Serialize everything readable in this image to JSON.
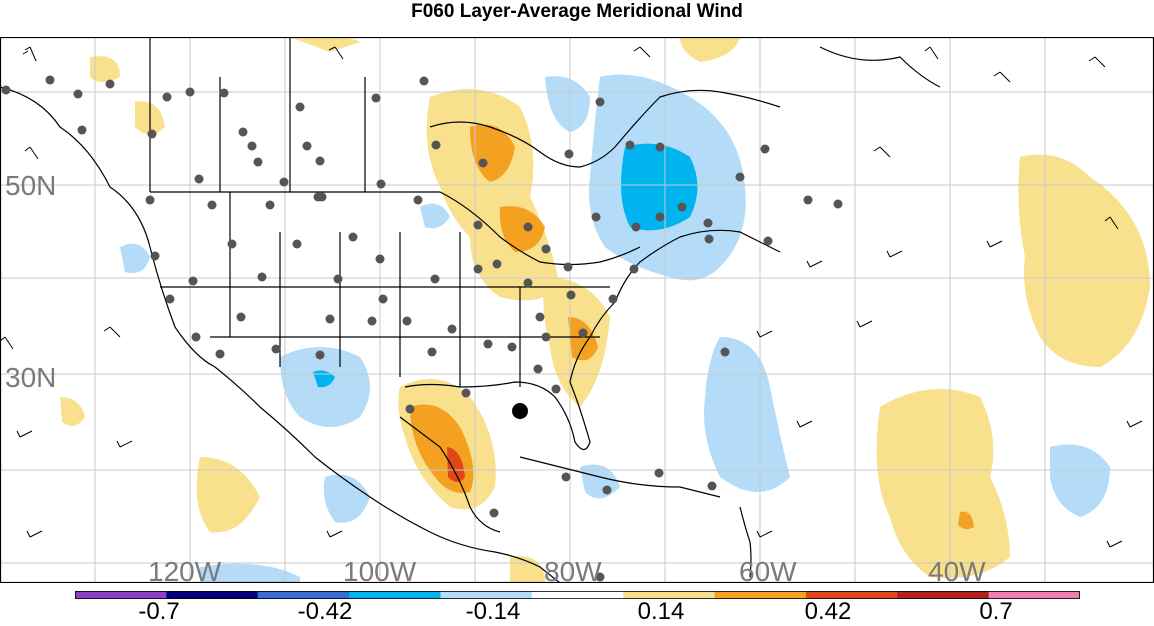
{
  "title": "F060 Layer-Average Meridional Wind",
  "map": {
    "latitude_labels": [
      "50N",
      "30N"
    ],
    "longitude_labels": [
      "120W",
      "100W",
      "80W",
      "60W",
      "40W"
    ],
    "shading": "diverging anomaly of meridional wind",
    "colors": {
      "negative_strong": "#00b4f0",
      "negative_weak": "#b4dcf8",
      "positive_weak": "#f8e08c",
      "positive_medium": "#f4a020",
      "positive_strong": "#e04818",
      "station_dot": "#555555"
    }
  },
  "colorbar": {
    "labels": [
      "-0.7",
      "-0.42",
      "-0.14",
      "0.14",
      "0.42",
      "0.7"
    ],
    "colors": [
      "#9040c8",
      "#000080",
      "#3a6ad8",
      "#00b4f0",
      "#b4dcf8",
      "#ffffff",
      "#f8e08c",
      "#f4a020",
      "#e04818",
      "#b02020",
      "#f080b0"
    ]
  }
}
